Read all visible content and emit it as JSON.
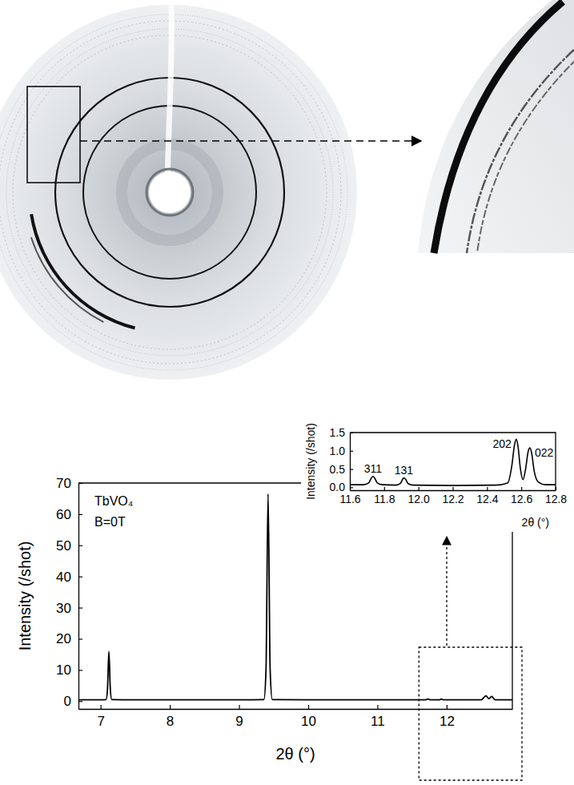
{
  "chart_data": [
    {
      "type": "line",
      "annotations": [
        "TbVO₄",
        "B=0T"
      ],
      "x_label": "2θ (°)",
      "y_label": "Intensity (/shot)",
      "xlim": [
        6.68,
        12.95
      ],
      "xticks": [
        7,
        8,
        9,
        10,
        11,
        12
      ],
      "ylim": [
        -2.5,
        70
      ],
      "yticks": [
        0,
        10,
        20,
        30,
        40,
        50,
        60,
        70
      ],
      "series": [
        {
          "color": "#000000",
          "x": [
            6.68,
            7.0,
            7.08,
            7.1,
            7.12,
            7.14,
            7.16,
            7.5,
            8.0,
            8.5,
            9.0,
            9.36,
            9.39,
            9.42,
            9.45,
            9.48,
            10.0,
            11.0,
            11.7,
            11.73,
            11.76,
            11.9,
            11.92,
            11.95,
            12.5,
            12.57,
            12.61,
            12.65,
            12.7,
            12.95
          ],
          "values": [
            0.4,
            0.4,
            0.5,
            4,
            16,
            4,
            0.5,
            0.4,
            0.4,
            0.4,
            0.4,
            0.5,
            10,
            66.5,
            10,
            0.5,
            0.4,
            0.4,
            0.45,
            0.7,
            0.45,
            0.45,
            0.65,
            0.45,
            0.45,
            1.7,
            0.8,
            1.5,
            0.45,
            0.4
          ]
        }
      ]
    },
    {
      "type": "line",
      "x_label": "2θ (°)",
      "y_label": "Intensity (/shot)",
      "xlim": [
        11.6,
        12.8
      ],
      "xticks": [
        11.6,
        11.8,
        {
          "value": 12,
          "label": "12.0"
        },
        12.2,
        12.4,
        12.6,
        12.8
      ],
      "ylim": [
        -0.08,
        1.5
      ],
      "yticks": [
        {
          "value": 0,
          "label": "0.0"
        },
        0.5,
        {
          "value": 1,
          "label": "1.0"
        },
        1.5
      ],
      "peak_labels": [
        {
          "label": "311",
          "x": 11.735,
          "y": 0.3
        },
        {
          "label": "131",
          "x": 11.915,
          "y": 0.26
        },
        {
          "label": "202",
          "x": 12.57,
          "y": 1.32
        },
        {
          "label": "022",
          "x": 12.65,
          "y": 1.08
        }
      ],
      "series": [
        {
          "color": "#000000",
          "x": [
            11.6,
            11.68,
            11.71,
            11.725,
            11.735,
            11.745,
            11.76,
            11.79,
            11.87,
            11.895,
            11.908,
            11.915,
            11.925,
            11.94,
            11.97,
            12.2,
            12.45,
            12.52,
            12.545,
            12.56,
            12.57,
            12.58,
            12.595,
            12.61,
            12.625,
            12.64,
            12.65,
            12.66,
            12.675,
            12.7,
            12.74,
            12.8
          ],
          "values": [
            0.07,
            0.07,
            0.12,
            0.25,
            0.3,
            0.25,
            0.12,
            0.07,
            0.06,
            0.11,
            0.22,
            0.26,
            0.22,
            0.1,
            0.06,
            0.05,
            0.06,
            0.12,
            0.6,
            1.15,
            1.32,
            1.15,
            0.5,
            0.21,
            0.5,
            0.98,
            1.08,
            0.95,
            0.45,
            0.14,
            0.07,
            0.07
          ]
        }
      ]
    }
  ]
}
